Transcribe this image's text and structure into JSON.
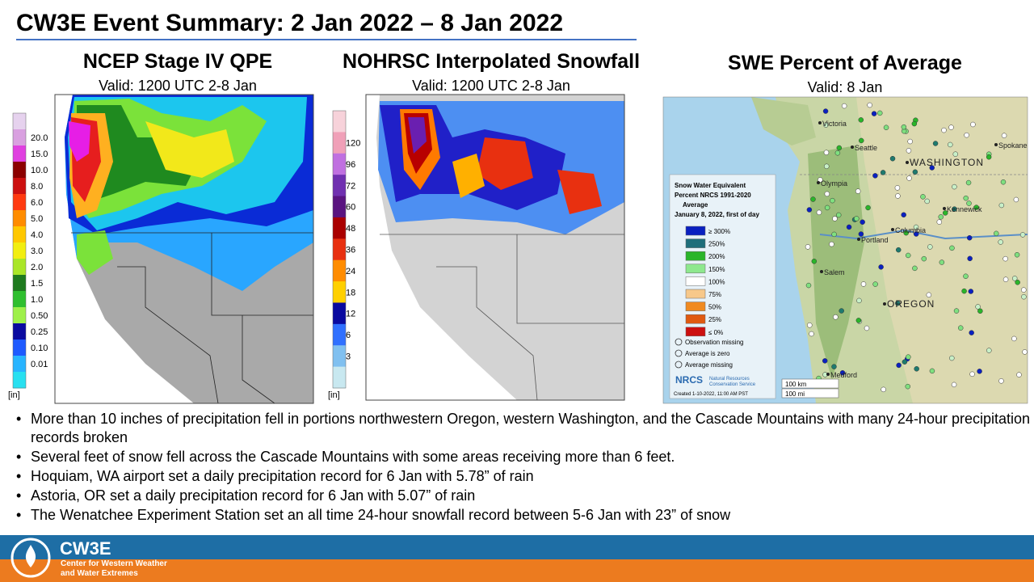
{
  "header": {
    "title": "CW3E Event Summary: 2 Jan 2022 – 8 Jan 2022"
  },
  "panels": [
    {
      "title": "NCEP Stage IV QPE",
      "subtitle": "Valid: 1200 UTC 2-8 Jan",
      "colorbar": {
        "labels": [
          "20.0",
          "15.0",
          "10.0",
          "8.0",
          "6.0",
          "5.0",
          "4.0",
          "3.0",
          "2.0",
          "1.5",
          "1.0",
          "0.50",
          "0.25",
          "0.10",
          "0.01"
        ],
        "unit": "[in]"
      }
    },
    {
      "title": "NOHRSC Interpolated Snowfall",
      "subtitle": "Valid: 1200 UTC 2-8 Jan",
      "colorbar": {
        "labels": [
          "120",
          "96",
          "72",
          "60",
          "48",
          "36",
          "24",
          "18",
          "12",
          "6",
          "3"
        ],
        "unit": "[in]"
      }
    },
    {
      "title": "SWE Percent of Average",
      "subtitle": "Valid: 8 Jan",
      "legend": {
        "title_lines": [
          "Snow Water Equivalent",
          "Percent NRCS 1991-2020",
          "Average",
          "January 8, 2022, first of day"
        ],
        "items": [
          "≥ 300%",
          "250%",
          "200%",
          "150%",
          "100%",
          "75%",
          "50%",
          "25%",
          "≤ 0%"
        ],
        "symbols": [
          "Observation missing",
          "Average is zero",
          "Average missing"
        ],
        "agency_logo": "NRCS",
        "agency_lines": [
          "Natural Resources",
          "Conservation Service"
        ],
        "created": "Created 1-10-2022, 11:00 AM PST"
      },
      "places": [
        "Victoria",
        "Seattle",
        "Spokane",
        "WASHINGTON",
        "Olympia",
        "Kennewick",
        "Portland",
        "Columbia",
        "Salem",
        "OREGON",
        "Medford"
      ],
      "scale": [
        "100 km",
        "100 mi"
      ]
    }
  ],
  "bullets": [
    "More than 10 inches of precipitation fell in portions northwestern Oregon, western Washington, and the Cascade Mountains with many 24-hour precipitation records broken",
    "Several feet of snow fell across the Cascade Mountains with some areas receiving more than 6 feet.",
    "Hoquiam,  WA airport set a daily precipitation record for 6 Jan with 5.78” of rain",
    "Astoria, OR set a daily precipitation record for 6 Jan with 5.07” of rain",
    "The  Wenatchee Experiment  Station set an all time 24-hour snowfall record between 5-6 Jan with 23” of snow"
  ],
  "footer": {
    "logo": "CW3E",
    "org_lines": [
      "Center for Western Weather",
      "and Water Extremes"
    ]
  }
}
